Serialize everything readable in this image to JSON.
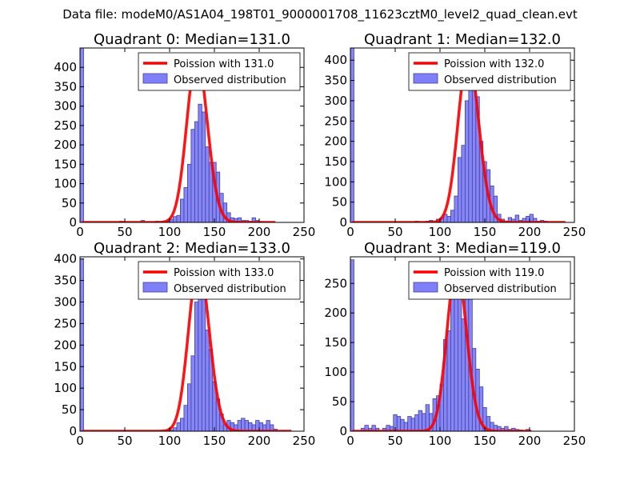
{
  "figure_title": "Data file: modeM0/AS1A04_198T01_9000001708_11623cztM0_level2_quad_clean.evt",
  "colors": {
    "bar_fill": "#7f7ff7",
    "bar_edge": "#4040a0",
    "poisson_line": "#ff0000",
    "axes": "#000000",
    "background": "#ffffff"
  },
  "chart_data": [
    {
      "type": "bar",
      "title": "Quadrant 0: Median=131.0",
      "xlim": [
        0,
        250
      ],
      "ylim": [
        0,
        450
      ],
      "xticks": [
        0,
        50,
        100,
        150,
        200,
        250
      ],
      "yticks": [
        0,
        50,
        100,
        150,
        200,
        250,
        300,
        350,
        400
      ],
      "bin_width": 4,
      "series": [
        {
          "name": "Observed distribution",
          "bins": [
            [
              0,
              450
            ],
            [
              44,
              3
            ],
            [
              68,
              5
            ],
            [
              84,
              3
            ],
            [
              92,
              3
            ],
            [
              96,
              3
            ],
            [
              100,
              8
            ],
            [
              104,
              15
            ],
            [
              108,
              18
            ],
            [
              112,
              60
            ],
            [
              116,
              90
            ],
            [
              120,
              150
            ],
            [
              124,
              240
            ],
            [
              128,
              260
            ],
            [
              132,
              305
            ],
            [
              136,
              285
            ],
            [
              140,
              195
            ],
            [
              144,
              155
            ],
            [
              148,
              155
            ],
            [
              152,
              130
            ],
            [
              156,
              75
            ],
            [
              160,
              50
            ],
            [
              164,
              25
            ],
            [
              168,
              12
            ],
            [
              172,
              10
            ],
            [
              176,
              12
            ],
            [
              180,
              5
            ],
            [
              184,
              5
            ],
            [
              188,
              3
            ],
            [
              192,
              12
            ],
            [
              196,
              5
            ],
            [
              200,
              2
            ]
          ]
        },
        {
          "name": "Poission with 131.0",
          "mean": 131.0,
          "peak": 426,
          "xrange": [
            2,
            218
          ]
        }
      ],
      "legend": {
        "position": "top-right",
        "entries": [
          "Poission with 131.0",
          "Observed distribution"
        ]
      }
    },
    {
      "type": "bar",
      "title": "Quadrant 1: Median=132.0",
      "xlim": [
        0,
        250
      ],
      "ylim": [
        0,
        430
      ],
      "xticks": [
        0,
        50,
        100,
        150,
        200,
        250
      ],
      "yticks": [
        0,
        50,
        100,
        150,
        200,
        250,
        300,
        350,
        400
      ],
      "bin_width": 4,
      "series": [
        {
          "name": "Observed distribution",
          "bins": [
            [
              0,
              430
            ],
            [
              72,
              3
            ],
            [
              84,
              3
            ],
            [
              88,
              5
            ],
            [
              96,
              8
            ],
            [
              100,
              12
            ],
            [
              104,
              20
            ],
            [
              108,
              15
            ],
            [
              112,
              30
            ],
            [
              116,
              65
            ],
            [
              120,
              160
            ],
            [
              124,
              190
            ],
            [
              128,
              300
            ],
            [
              132,
              375
            ],
            [
              136,
              325
            ],
            [
              140,
              310
            ],
            [
              144,
              200
            ],
            [
              148,
              150
            ],
            [
              152,
              130
            ],
            [
              156,
              90
            ],
            [
              160,
              65
            ],
            [
              164,
              20
            ],
            [
              168,
              8
            ],
            [
              172,
              3
            ],
            [
              176,
              12
            ],
            [
              180,
              8
            ],
            [
              184,
              18
            ],
            [
              188,
              5
            ],
            [
              192,
              10
            ],
            [
              196,
              15
            ],
            [
              200,
              20
            ],
            [
              204,
              10
            ],
            [
              208,
              3
            ],
            [
              212,
              5
            ],
            [
              216,
              3
            ]
          ]
        },
        {
          "name": "Poission with 132.0",
          "mean": 132.0,
          "peak": 410,
          "xrange": [
            2,
            240
          ]
        }
      ],
      "legend": {
        "position": "top-right",
        "entries": [
          "Poission with 132.0",
          "Observed distribution"
        ]
      }
    },
    {
      "type": "bar",
      "title": "Quadrant 2: Median=133.0",
      "xlim": [
        0,
        250
      ],
      "ylim": [
        0,
        405
      ],
      "xticks": [
        0,
        50,
        100,
        150,
        200,
        250
      ],
      "yticks": [
        0,
        50,
        100,
        150,
        200,
        250,
        300,
        350,
        400
      ],
      "bin_width": 4,
      "series": [
        {
          "name": "Observed distribution",
          "bins": [
            [
              0,
              400
            ],
            [
              100,
              3
            ],
            [
              104,
              8
            ],
            [
              108,
              20
            ],
            [
              112,
              30
            ],
            [
              116,
              60
            ],
            [
              120,
              110
            ],
            [
              124,
              175
            ],
            [
              128,
              300
            ],
            [
              132,
              385
            ],
            [
              136,
              375
            ],
            [
              140,
              235
            ],
            [
              144,
              190
            ],
            [
              148,
              115
            ],
            [
              152,
              75
            ],
            [
              156,
              40
            ],
            [
              160,
              15
            ],
            [
              164,
              25
            ],
            [
              168,
              20
            ],
            [
              172,
              15
            ],
            [
              176,
              25
            ],
            [
              180,
              30
            ],
            [
              184,
              25
            ],
            [
              188,
              20
            ],
            [
              192,
              15
            ],
            [
              196,
              25
            ],
            [
              200,
              20
            ],
            [
              204,
              15
            ],
            [
              208,
              25
            ],
            [
              212,
              15
            ],
            [
              216,
              5
            ]
          ]
        },
        {
          "name": "Poission with 133.0",
          "mean": 133.0,
          "peak": 388,
          "xrange": [
            2,
            236
          ]
        }
      ],
      "legend": {
        "position": "top-right",
        "entries": [
          "Poission with 133.0",
          "Observed distribution"
        ]
      }
    },
    {
      "type": "bar",
      "title": "Quadrant 3: Median=119.0",
      "xlim": [
        0,
        250
      ],
      "ylim": [
        0,
        295
      ],
      "xticks": [
        0,
        50,
        100,
        150,
        200,
        250
      ],
      "yticks": [
        0,
        50,
        100,
        150,
        200,
        250
      ],
      "bin_width": 4,
      "series": [
        {
          "name": "Observed distribution",
          "bins": [
            [
              0,
              290
            ],
            [
              12,
              5
            ],
            [
              16,
              10
            ],
            [
              20,
              5
            ],
            [
              24,
              10
            ],
            [
              28,
              5
            ],
            [
              36,
              5
            ],
            [
              40,
              10
            ],
            [
              44,
              8
            ],
            [
              48,
              28
            ],
            [
              52,
              25
            ],
            [
              56,
              20
            ],
            [
              60,
              15
            ],
            [
              64,
              25
            ],
            [
              68,
              22
            ],
            [
              72,
              28
            ],
            [
              76,
              35
            ],
            [
              80,
              30
            ],
            [
              84,
              45
            ],
            [
              88,
              30
            ],
            [
              92,
              55
            ],
            [
              96,
              60
            ],
            [
              100,
              80
            ],
            [
              104,
              155
            ],
            [
              108,
              170
            ],
            [
              112,
              270
            ],
            [
              116,
              280
            ],
            [
              120,
              275
            ],
            [
              124,
              190
            ],
            [
              128,
              280
            ],
            [
              132,
              225
            ],
            [
              136,
              140
            ],
            [
              140,
              105
            ],
            [
              144,
              75
            ],
            [
              148,
              40
            ],
            [
              152,
              25
            ],
            [
              156,
              15
            ],
            [
              160,
              10
            ],
            [
              164,
              8
            ],
            [
              168,
              5
            ],
            [
              172,
              8
            ],
            [
              176,
              3
            ],
            [
              180,
              5
            ],
            [
              184,
              3
            ],
            [
              188,
              2
            ],
            [
              196,
              3
            ]
          ]
        },
        {
          "name": "Poission with 119.0",
          "mean": 119.0,
          "peak": 278,
          "xrange": [
            2,
            202
          ]
        }
      ],
      "legend": {
        "position": "top-right",
        "entries": [
          "Poission with 119.0",
          "Observed distribution"
        ]
      }
    }
  ]
}
